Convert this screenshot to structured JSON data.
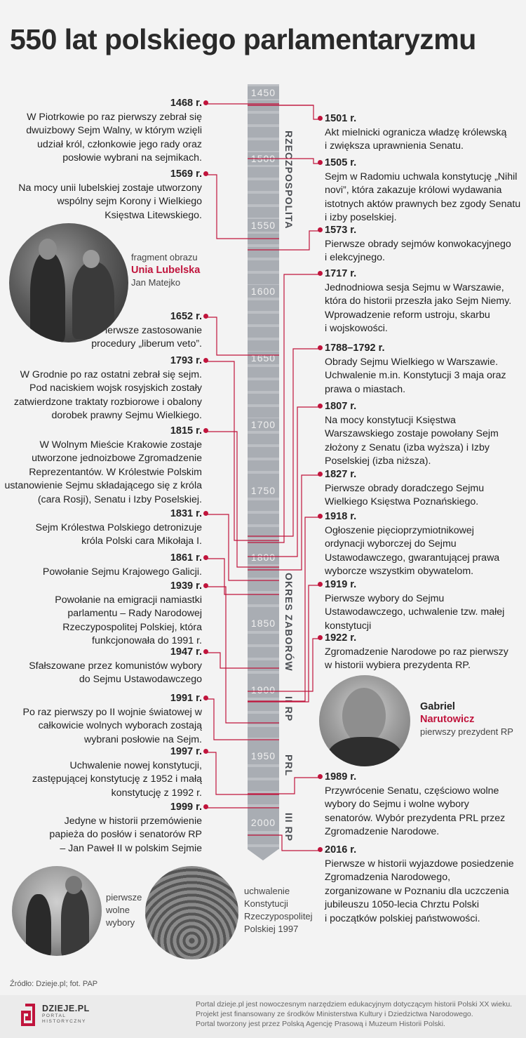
{
  "title": "550 lat polskiego parlamentaryzmu",
  "timeline": {
    "years": [
      "1450",
      "1500",
      "1550",
      "1600",
      "1650",
      "1700",
      "1750",
      "1800",
      "1850",
      "1900",
      "1950",
      "2000"
    ],
    "periods": [
      "RZECZPOSPOLITA",
      "OKRES ZABORÓW",
      "II RP",
      "PRL",
      "III RP"
    ]
  },
  "left_events": [
    {
      "year": "1468 r.",
      "lines": [
        "W Piotrkowie po raz pierwszy zebrał się",
        "dwuizbowy Sejm Walny, w którym wzięli",
        "udział król, członkowie jego rady oraz",
        "posłowie wybrani na sejmikach."
      ]
    },
    {
      "year": "1569 r.",
      "lines": [
        "Na mocy unii lubelskiej zostaje utworzony",
        "wspólny sejm Korony i Wielkiego",
        "Księstwa Litewskiego."
      ]
    },
    {
      "year": "1652 r.",
      "lines": [
        "Pierwsze zastosowanie",
        "procedury „liberum veto”."
      ]
    },
    {
      "year": "1793 r.",
      "lines": [
        "W Grodnie po raz ostatni zebrał się sejm.",
        "Pod naciskiem wojsk rosyjskich zostały",
        "zatwierdzone traktaty rozbiorowe i obalony",
        "dorobek prawny Sejmu Wielkiego."
      ]
    },
    {
      "year": "1815 r.",
      "lines": [
        "W Wolnym Mieście Krakowie zostaje",
        "utworzone jednoizbowe Zgromadzenie",
        "Reprezentantów. W Królestwie Polskim",
        "ustanowienie Sejmu składającego się z króla",
        "(cara Rosji), Senatu i Izby Poselskiej."
      ]
    },
    {
      "year": "1831 r.",
      "lines": [
        "Sejm Królestwa Polskiego detronizuje",
        "króla Polski cara Mikołaja I."
      ]
    },
    {
      "year": "1861 r.",
      "lines": [
        "Powołanie Sejmu Krajowego Galicji."
      ]
    },
    {
      "year": "1939 r.",
      "lines": [
        "Powołanie na emigracji namiastki",
        "parlamentu – Rady Narodowej",
        "Rzeczypospolitej Polskiej, która",
        "funkcjonowała do 1991 r."
      ]
    },
    {
      "year": "1947 r.",
      "lines": [
        "Sfałszowane przez komunistów wybory",
        "do Sejmu Ustawodawczego"
      ]
    },
    {
      "year": "1991 r.",
      "lines": [
        "Po raz pierwszy po II wojnie światowej w",
        "całkowicie wolnych wyborach zostają",
        "wybrani posłowie na Sejm."
      ]
    },
    {
      "year": "1997 r.",
      "lines": [
        "Uchwalenie nowej konstytucji,",
        "zastępującej konstytucję z 1952 i małą",
        "konstytucję z 1992 r."
      ]
    },
    {
      "year": "1999 r.",
      "lines": [
        "Jedyne w historii przemówienie",
        "papieża do posłów i senatorów RP",
        "– Jan Paweł II w polskim Sejmie"
      ]
    }
  ],
  "right_events": [
    {
      "year": "1501 r.",
      "lines": [
        "Akt mielnicki ogranicza władzę królewską",
        "i zwiększa uprawnienia Senatu."
      ]
    },
    {
      "year": "1505 r.",
      "lines": [
        "Sejm w Radomiu uchwala konstytucję „Nihil",
        "novi”, która zakazuje królowi wydawania",
        "istotnych aktów prawnych bez zgody Senatu",
        "i izby poselskiej."
      ]
    },
    {
      "year": "1573 r.",
      "lines": [
        "Pierwsze obrady sejmów konwokacyjnego",
        "i elekcyjnego."
      ]
    },
    {
      "year": "1717 r.",
      "lines": [
        "Jednodniowa sesja Sejmu w Warszawie,",
        "która do historii przeszła jako Sejm Niemy.",
        "Wprowadzenie reform ustroju, skarbu",
        "i wojskowości."
      ]
    },
    {
      "year": "1788–1792 r.",
      "lines": [
        "Obrady Sejmu Wielkiego w Warszawie.",
        "Uchwalenie m.in. Konstytucji 3 maja oraz",
        "prawa o miastach."
      ]
    },
    {
      "year": "1807 r.",
      "lines": [
        "Na mocy konstytucji Księstwa",
        "Warszawskiego zostaje powołany Sejm",
        "złożony z Senatu (izba wyższa) i Izby",
        "Poselskiej (izba niższa)."
      ]
    },
    {
      "year": "1827 r.",
      "lines": [
        "Pierwsze obrady doradczego Sejmu",
        "Wielkiego Księstwa Poznańskiego."
      ]
    },
    {
      "year": "1918 r.",
      "lines": [
        "Ogłoszenie pięcioprzymiotnikowej",
        "ordynacji wyborczej do Sejmu",
        "Ustawodawczego, gwarantującej prawa",
        "wyborcze wszystkim obywatelom."
      ]
    },
    {
      "year": "1919 r.",
      "lines": [
        "Pierwsze wybory do Sejmu",
        "Ustawodawczego, uchwalenie tzw. małej",
        "konstytucji"
      ]
    },
    {
      "year": "1922 r.",
      "lines": [
        "Zgromadzenie Narodowe po raz pierwszy",
        "w historii wybiera prezydenta RP."
      ]
    },
    {
      "year": "1989 r.",
      "lines": [
        "Przywrócenie Senatu, częściowo wolne",
        "wybory do Sejmu i wolne wybory",
        "senatorów. Wybór prezydenta PRL przez",
        "Zgromadzenie Narodowe."
      ]
    },
    {
      "year": "2016 r.",
      "lines": [
        "Pierwsze w historii wyjazdowe posiedzenie",
        "Zgromadzenia Narodowego,",
        "zorganizowane w Poznaniu dla uczczenia",
        "jubileuszu 1050-lecia Chrztu Polski",
        "i początków polskiej państwowości."
      ]
    }
  ],
  "captions": {
    "matejko": {
      "pre": "fragment obrazu",
      "title": "Unia Lubelska",
      "author": "Jan Matejko"
    },
    "narutowicz": {
      "first": "Gabriel",
      "last": "Narutowicz",
      "role": "pierwszy prezydent RP"
    },
    "election": [
      "pierwsze",
      "wolne",
      "wybory"
    ],
    "constitution": [
      "uchwalenie",
      "Konstytucji",
      "Rzeczypospolitej",
      "Polskiej 1997"
    ]
  },
  "source": "Źródło: Dzieje.pl; fot. PAP",
  "logo": {
    "name": "DZIEJE.PL",
    "sub1": "PORTAL",
    "sub2": "HISTORYCZNY"
  },
  "footer": [
    "Portal dzieje.pl jest nowoczesnym narzędziem edukacyjnym dotyczącym historii Polski XX wieku.",
    "Projekt jest finansowany ze środków Ministerstwa Kultury i Dziedzictwa Narodowego.",
    "Portal tworzony jest przez Polską Agencję Prasową i Muzeum Historii Polski."
  ],
  "colors": {
    "accent": "#c0143c",
    "bar": "#a9adb3",
    "text": "#222222"
  }
}
